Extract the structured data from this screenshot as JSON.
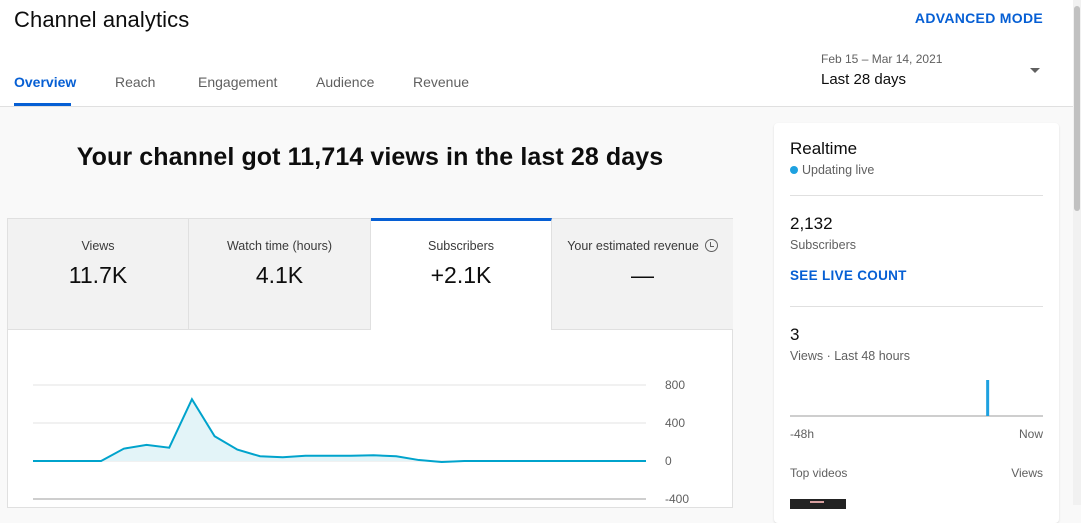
{
  "page": {
    "title": "Channel analytics",
    "advanced_mode": "ADVANCED MODE"
  },
  "tabs": [
    {
      "label": "Overview"
    },
    {
      "label": "Reach"
    },
    {
      "label": "Engagement"
    },
    {
      "label": "Audience"
    },
    {
      "label": "Revenue"
    }
  ],
  "date": {
    "range": "Feb 15 – Mar 14, 2021",
    "period": "Last 28 days"
  },
  "headline": "Your channel got 11,714 views in the last 28 days",
  "metrics": [
    {
      "label": "Views",
      "value": "11.7K"
    },
    {
      "label": "Watch time (hours)",
      "value": "4.1K"
    },
    {
      "label": "Subscribers",
      "value": "+2.1K"
    },
    {
      "label": "Your estimated revenue",
      "value": "—"
    }
  ],
  "chart_data": {
    "type": "area",
    "series": [
      {
        "values": [
          0,
          0,
          0,
          0,
          130,
          170,
          140,
          650,
          260,
          120,
          50,
          40,
          55,
          55,
          55,
          60,
          50,
          10,
          -10,
          0,
          0,
          0,
          0,
          0,
          0,
          0,
          0,
          0
        ]
      }
    ],
    "y_ticks": [
      "800",
      "400",
      "0",
      "-400"
    ],
    "ylim": [
      -400,
      800
    ],
    "grid": true,
    "color": "#00a3cc"
  },
  "realtime": {
    "title": "Realtime",
    "status": "Updating live",
    "subscribers_count": "2,132",
    "subscribers_label": "Subscribers",
    "see_live_count": "SEE LIVE COUNT",
    "views_count": "3",
    "views_label": "Views · Last 48 hours",
    "axis_start": "-48h",
    "axis_end": "Now",
    "top_videos_label": "Top videos",
    "top_videos_metric": "Views",
    "bars": [
      0,
      0,
      0,
      0,
      0,
      0,
      0,
      0,
      0,
      0,
      0,
      0,
      0,
      0,
      0,
      0,
      0,
      0,
      0,
      0,
      0,
      0,
      0,
      0,
      0,
      0,
      0,
      0,
      0,
      0,
      0,
      0,
      0,
      0,
      0,
      0,
      0,
      3,
      0,
      0,
      0,
      0,
      0,
      0,
      0,
      0,
      0,
      0
    ],
    "accent": "#1ea1e0"
  }
}
